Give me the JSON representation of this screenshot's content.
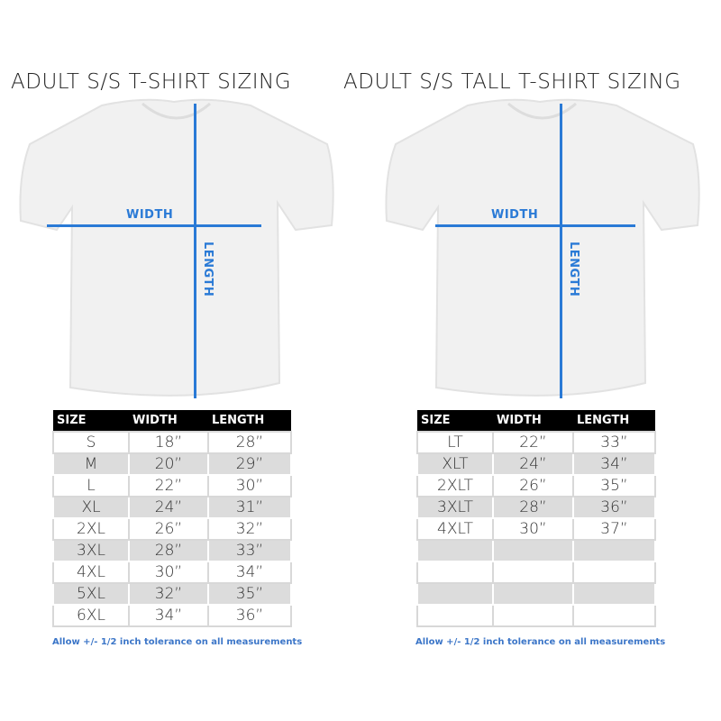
{
  "colors": {
    "accent": "#2a7ad6",
    "header_bg": "#000000",
    "alt_row": "#dcdcdc"
  },
  "charts": [
    {
      "title": "ADULT S/S T-SHIRT SIZING",
      "width_label": "WIDTH",
      "length_label": "LENGTH",
      "headers": [
        "SIZE",
        "WIDTH",
        "LENGTH"
      ],
      "rows": [
        [
          "S",
          "18”",
          "28”"
        ],
        [
          "M",
          "20”",
          "29”"
        ],
        [
          "L",
          "22”",
          "30”"
        ],
        [
          "XL",
          "24”",
          "31”"
        ],
        [
          "2XL",
          "26”",
          "32”"
        ],
        [
          "3XL",
          "28”",
          "33”"
        ],
        [
          "4XL",
          "30”",
          "34”"
        ],
        [
          "5XL",
          "32”",
          "35”"
        ],
        [
          "6XL",
          "34”",
          "36”"
        ]
      ],
      "note": "Allow +/- 1/2 inch tolerance on all measurements"
    },
    {
      "title": "ADULT S/S TALL T-SHIRT SIZING",
      "width_label": "WIDTH",
      "length_label": "LENGTH",
      "headers": [
        "SIZE",
        "WIDTH",
        "LENGTH"
      ],
      "rows": [
        [
          "LT",
          "22”",
          "33”"
        ],
        [
          "XLT",
          "24”",
          "34”"
        ],
        [
          "2XLT",
          "26”",
          "35”"
        ],
        [
          "3XLT",
          "28”",
          "36”"
        ],
        [
          "4XLT",
          "30”",
          "37”"
        ],
        [
          "",
          "",
          ""
        ],
        [
          "",
          "",
          ""
        ],
        [
          "",
          "",
          ""
        ],
        [
          "",
          "",
          ""
        ]
      ],
      "note": "Allow +/- 1/2 inch tolerance on all measurements"
    }
  ]
}
